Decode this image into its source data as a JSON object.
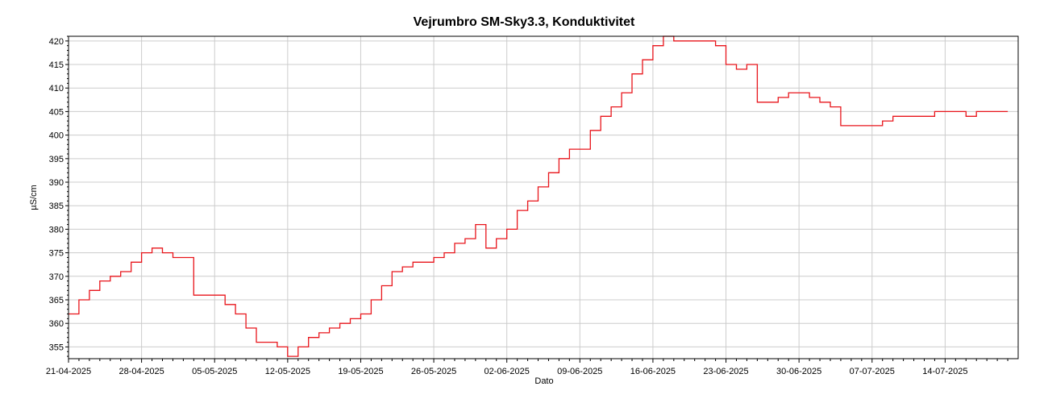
{
  "chart_data": {
    "type": "line",
    "title": "Vejrumbro SM-Sky3.3, Konduktivitet",
    "xlabel": "Dato",
    "ylabel": "µS/cm",
    "x_tick_labels": [
      "21-04-2025",
      "28-04-2025",
      "05-05-2025",
      "12-05-2025",
      "19-05-2025",
      "26-05-2025",
      "02-06-2025",
      "09-06-2025",
      "16-06-2025",
      "23-06-2025",
      "30-06-2025",
      "07-07-2025",
      "14-07-2025"
    ],
    "y_tick_labels": [
      "355",
      "360",
      "365",
      "370",
      "375",
      "380",
      "385",
      "390",
      "395",
      "400",
      "405",
      "410",
      "415",
      "420"
    ],
    "xlim": [
      "2025-04-21",
      "2025-07-21"
    ],
    "ylim": [
      352.5,
      421
    ],
    "grid": true,
    "line_color": "#e8151b",
    "series": [
      {
        "x": [
          "2025-04-21",
          "2025-04-22",
          "2025-04-23",
          "2025-04-24",
          "2025-04-25",
          "2025-04-26",
          "2025-04-27",
          "2025-04-28",
          "2025-04-29",
          "2025-04-30",
          "2025-05-01",
          "2025-05-02",
          "2025-05-03",
          "2025-05-04",
          "2025-05-05",
          "2025-05-06",
          "2025-05-07",
          "2025-05-08",
          "2025-05-09",
          "2025-05-10",
          "2025-05-11",
          "2025-05-12",
          "2025-05-13",
          "2025-05-14",
          "2025-05-15",
          "2025-05-16",
          "2025-05-17",
          "2025-05-18",
          "2025-05-19",
          "2025-05-20",
          "2025-05-21",
          "2025-05-22",
          "2025-05-23",
          "2025-05-24",
          "2025-05-25",
          "2025-05-26",
          "2025-05-27",
          "2025-05-28",
          "2025-05-29",
          "2025-05-30",
          "2025-05-31",
          "2025-06-01",
          "2025-06-02",
          "2025-06-03",
          "2025-06-04",
          "2025-06-05",
          "2025-06-06",
          "2025-06-07",
          "2025-06-08",
          "2025-06-09",
          "2025-06-10",
          "2025-06-11",
          "2025-06-12",
          "2025-06-13",
          "2025-06-14",
          "2025-06-15",
          "2025-06-16",
          "2025-06-17",
          "2025-06-18",
          "2025-06-19",
          "2025-06-20",
          "2025-06-21",
          "2025-06-22",
          "2025-06-23",
          "2025-06-24",
          "2025-06-25",
          "2025-06-26",
          "2025-06-27",
          "2025-06-28",
          "2025-06-29",
          "2025-06-30",
          "2025-07-01",
          "2025-07-02",
          "2025-07-03",
          "2025-07-04",
          "2025-07-05",
          "2025-07-06",
          "2025-07-07",
          "2025-07-08",
          "2025-07-09",
          "2025-07-10",
          "2025-07-11",
          "2025-07-12",
          "2025-07-13",
          "2025-07-14",
          "2025-07-15",
          "2025-07-16",
          "2025-07-17",
          "2025-07-18",
          "2025-07-19",
          "2025-07-20"
        ],
        "y": [
          362,
          365,
          367,
          369,
          370,
          371,
          373,
          375,
          376,
          375,
          374,
          374,
          366,
          366,
          366,
          364,
          362,
          359,
          356,
          356,
          355,
          353,
          355,
          357,
          358,
          359,
          360,
          361,
          362,
          365,
          368,
          371,
          372,
          373,
          373,
          374,
          375,
          377,
          378,
          381,
          376,
          378,
          380,
          384,
          386,
          389,
          392,
          395,
          397,
          397,
          401,
          404,
          406,
          409,
          413,
          416,
          419,
          421,
          420,
          420,
          420,
          420,
          419,
          415,
          414,
          415,
          407,
          407,
          408,
          409,
          409,
          408,
          407,
          406,
          402,
          402,
          402,
          402,
          403,
          404,
          404,
          404,
          404,
          405,
          405,
          405,
          404,
          405,
          405,
          405,
          405
        ]
      }
    ]
  }
}
